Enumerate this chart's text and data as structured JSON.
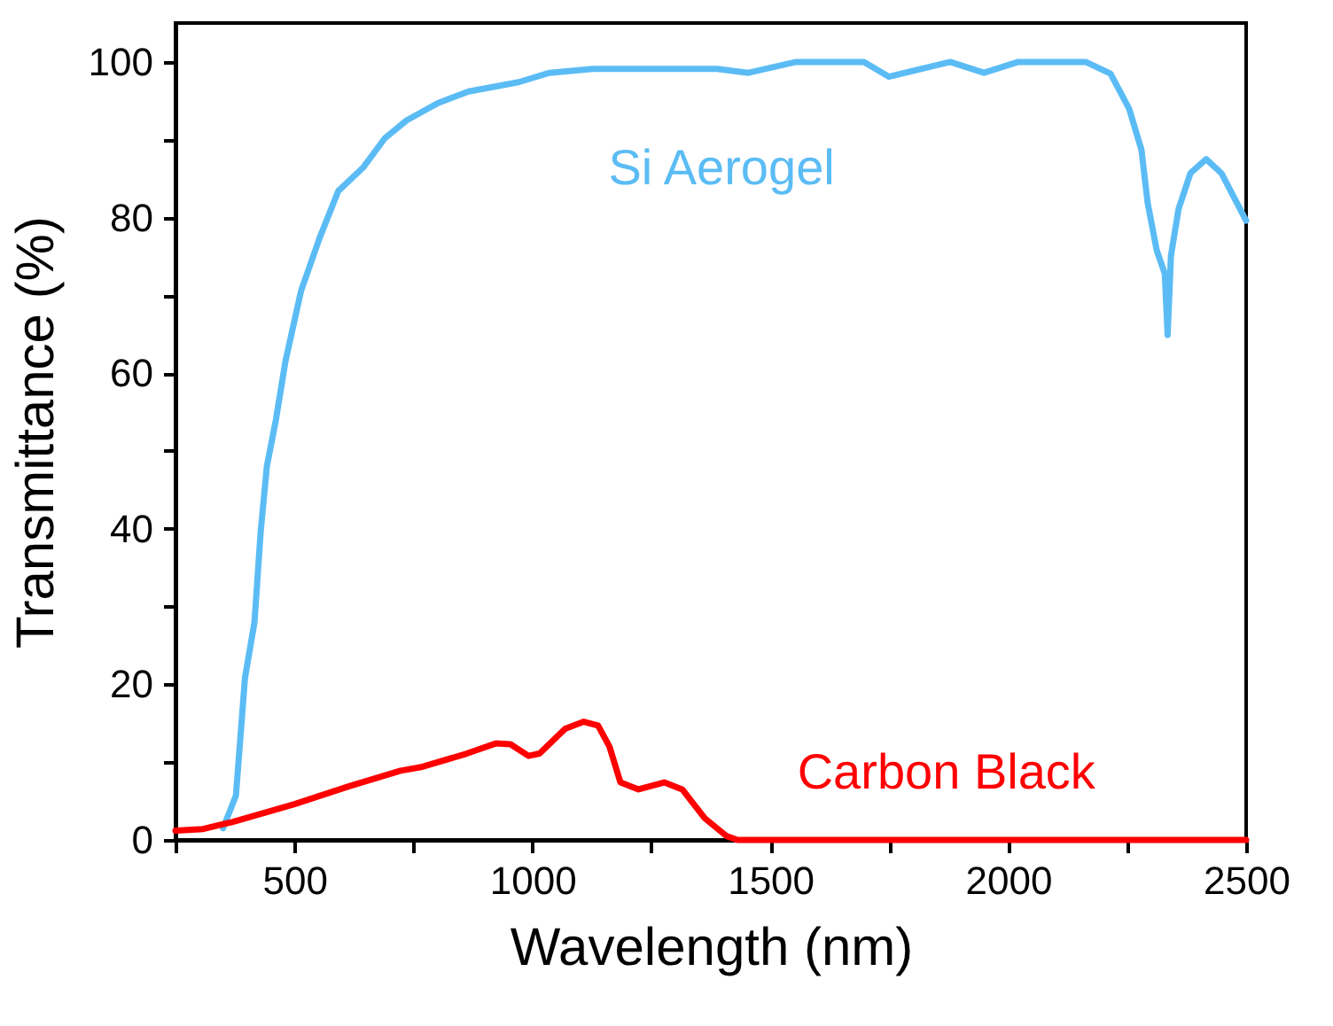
{
  "chart_data": {
    "type": "line",
    "xlabel": "Wavelength (nm)",
    "ylabel": "Transmittance (%)",
    "xlim": [
      250,
      2500
    ],
    "ylim": [
      0,
      105
    ],
    "xticks": [
      {
        "value": 250,
        "label": null
      },
      500,
      {
        "value": 750,
        "label": null
      },
      1000,
      {
        "value": 1250,
        "label": null
      },
      1500,
      {
        "value": 1750,
        "label": null
      },
      2000,
      {
        "value": 2250,
        "label": null
      },
      2500
    ],
    "yticks": [
      0,
      {
        "value": 10,
        "label": null
      },
      20,
      {
        "value": 30,
        "label": null
      },
      40,
      {
        "value": 50,
        "label": null
      },
      60,
      {
        "value": 70,
        "label": null
      },
      80,
      {
        "value": 90,
        "label": null
      },
      100
    ],
    "grid": false,
    "legend": false,
    "marker": "none",
    "line_style": "solid",
    "series": [
      {
        "name": "Si Aerogel",
        "color": "#5bbcf5",
        "x": [
          350,
          377,
          396,
          416,
          429,
          442,
          461,
          481,
          514,
          553,
          592,
          644,
          690,
          736,
          801,
          866,
          971,
          1036,
          1127,
          1388,
          1454,
          1554,
          1697,
          1749,
          1878,
          1949,
          2021,
          2163,
          2215,
          2254,
          2280,
          2293,
          2312,
          2329,
          2335,
          2342,
          2358,
          2383,
          2416,
          2448,
          2500
        ],
        "values": [
          1.5,
          5.7,
          20.8,
          28,
          39.6,
          48,
          54,
          61.5,
          70.6,
          77.4,
          83.4,
          86.4,
          90.2,
          92.5,
          94.7,
          96.2,
          97.4,
          98.6,
          99.1,
          99.1,
          98.6,
          100,
          100,
          98.1,
          100,
          98.6,
          100,
          100,
          98.5,
          94,
          88.7,
          81.9,
          75.8,
          72.8,
          64.9,
          75.1,
          81.1,
          85.7,
          87.5,
          85.7,
          79.6
        ]
      },
      {
        "name": "Carbon Black",
        "color": "#ff0000",
        "x": [
          250,
          308,
          369,
          500,
          615,
          723,
          769,
          862,
          923,
          954,
          992,
          1015,
          1069,
          1108,
          1138,
          1162,
          1185,
          1223,
          1277,
          1315,
          1362,
          1408,
          1431,
          2500
        ],
        "values": [
          1.2,
          1.4,
          2.3,
          4.6,
          6.9,
          8.9,
          9.4,
          11.1,
          12.4,
          12.3,
          10.8,
          11.1,
          14.3,
          15.2,
          14.7,
          12,
          7.4,
          6.5,
          7.4,
          6.5,
          2.8,
          0.5,
          0,
          0
        ]
      }
    ]
  }
}
